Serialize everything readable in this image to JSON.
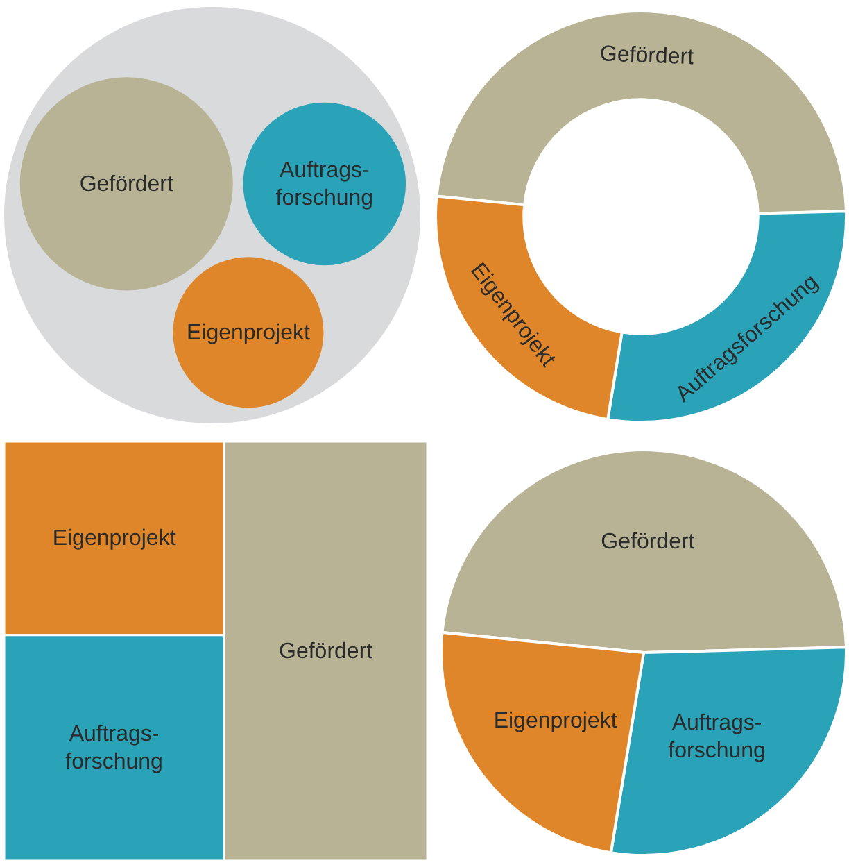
{
  "chart_data": [
    {
      "type": "other",
      "categories": [
        "Gefördert",
        "Auftrags-\nforschung",
        "Eigenprojekt"
      ],
      "colors": [
        "#b8b394",
        "#2aa3b8",
        "#e0862a"
      ]
    },
    {
      "type": "donut",
      "categories": [
        "Gefördert",
        "Auftragsforschung",
        "Eigenprojekt"
      ],
      "values": [
        48,
        28,
        24
      ],
      "colors": [
        "#b8b394",
        "#2aa3b8",
        "#e0862a"
      ]
    },
    {
      "type": "other",
      "categories": [
        "Gefördert",
        "Auftrags-\nforschung",
        "Eigenprojekt"
      ],
      "colors": [
        "#b8b394",
        "#2aa3b8",
        "#e0862a"
      ]
    },
    {
      "type": "pie",
      "categories": [
        "Gefördert",
        "Auftrags-\nforschung",
        "Eigenprojekt"
      ],
      "values": [
        48,
        28,
        24
      ],
      "colors": [
        "#b8b394",
        "#2aa3b8",
        "#e0862a"
      ]
    }
  ]
}
